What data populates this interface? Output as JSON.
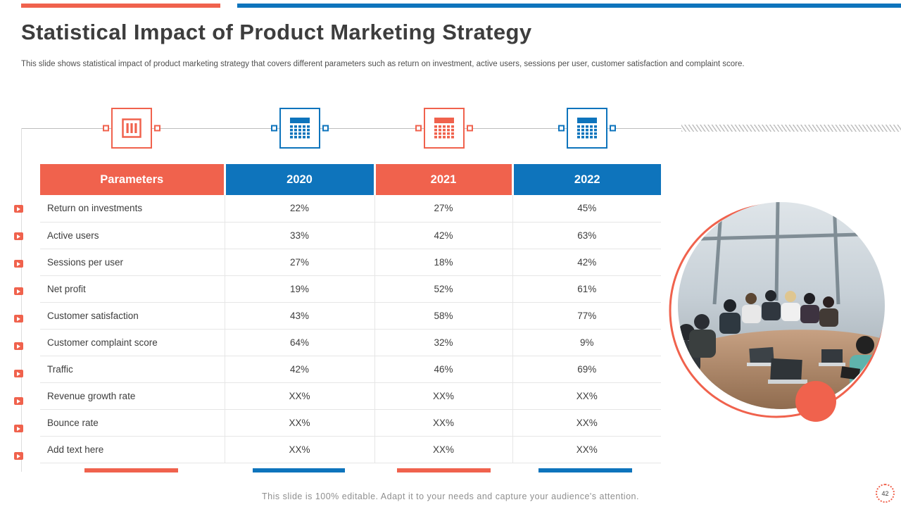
{
  "slide": {
    "title": "Statistical Impact of Product Marketing Strategy",
    "subtitle": "This slide shows statistical impact of product marketing strategy that covers different parameters such as return on investment, active users, sessions per user, customer satisfaction and complaint score.",
    "footer": "This slide is 100% editable. Adapt it to your needs and capture your audience's attention.",
    "page_number": "42"
  },
  "colors": {
    "coral": "#F0624D",
    "blue": "#0E74BC",
    "text_dark": "#3D3D3D",
    "text_gray": "#8F8F8F",
    "row_border": "#E6E6E6"
  },
  "icons": [
    {
      "name": "abacus-icon",
      "color": "coral"
    },
    {
      "name": "calculator-icon",
      "color": "blue"
    },
    {
      "name": "calculator-icon",
      "color": "coral"
    },
    {
      "name": "calculator-icon",
      "color": "blue"
    }
  ],
  "table": {
    "headers": [
      {
        "label": "Parameters",
        "color": "coral"
      },
      {
        "label": "2020",
        "color": "blue"
      },
      {
        "label": "2021",
        "color": "coral"
      },
      {
        "label": "2022",
        "color": "blue"
      }
    ],
    "rows": [
      {
        "parameter": "Return on investments",
        "values": [
          "22%",
          "27%",
          "45%"
        ]
      },
      {
        "parameter": "Active users",
        "values": [
          "33%",
          "42%",
          "63%"
        ]
      },
      {
        "parameter": "Sessions per user",
        "values": [
          "27%",
          "18%",
          "42%"
        ]
      },
      {
        "parameter": "Net profit",
        "values": [
          "19%",
          "52%",
          "61%"
        ]
      },
      {
        "parameter": "Customer satisfaction",
        "values": [
          "43%",
          "58%",
          "77%"
        ]
      },
      {
        "parameter": "Customer complaint score",
        "values": [
          "64%",
          "32%",
          "9%"
        ]
      },
      {
        "parameter": "Traffic",
        "values": [
          "42%",
          "46%",
          "69%"
        ]
      },
      {
        "parameter": "Revenue growth rate",
        "values": [
          "XX%",
          "XX%",
          "XX%"
        ]
      },
      {
        "parameter": "Bounce rate",
        "values": [
          "XX%",
          "XX%",
          "XX%"
        ]
      },
      {
        "parameter": "Add text here",
        "values": [
          "XX%",
          "XX%",
          "XX%"
        ]
      }
    ]
  }
}
